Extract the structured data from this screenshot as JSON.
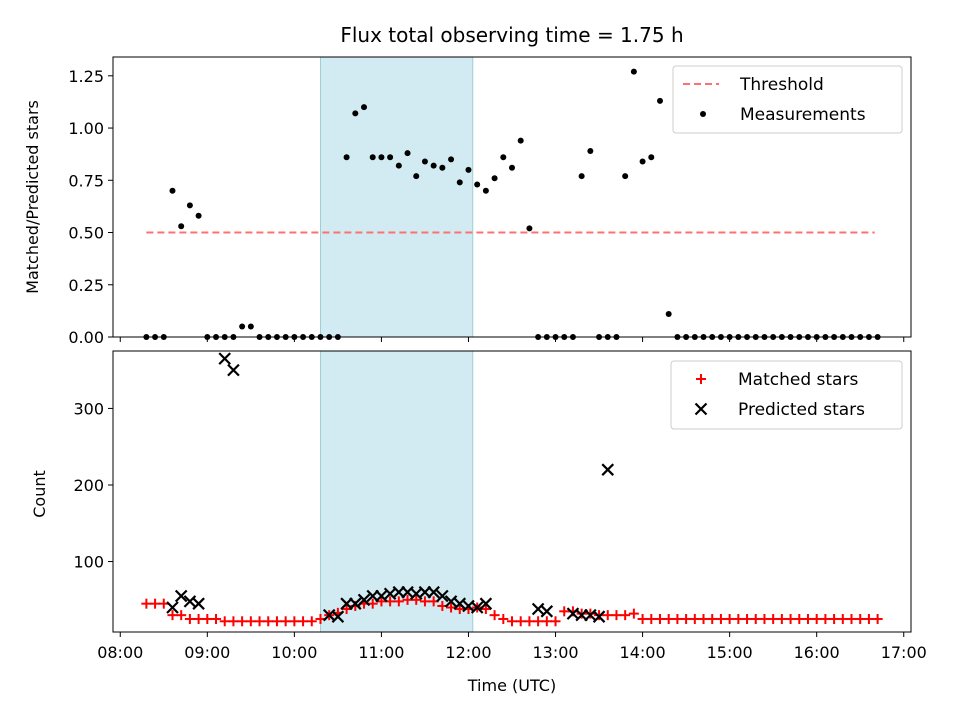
{
  "figure": {
    "title": "Flux total observing time = 1.75 h"
  },
  "chart_data": [
    {
      "type": "scatter",
      "panel": "top",
      "title": "Flux total observing time = 1.75 h",
      "xlabel": "",
      "ylabel": "Matched/Predicted stars",
      "xlim": [
        "07:55",
        "17:05"
      ],
      "ylim": [
        0,
        1.34
      ],
      "yticks": [
        0.0,
        0.25,
        0.5,
        0.75,
        1.0,
        1.25
      ],
      "ytick_labels": [
        "0.00",
        "0.25",
        "0.50",
        "0.75",
        "1.00",
        "1.25"
      ],
      "highlight_span": {
        "start": "10:18",
        "end": "12:03",
        "color": "#add8e6"
      },
      "legend": {
        "placement": "top-right",
        "entries": [
          "Threshold",
          "Measurements"
        ]
      },
      "series": [
        {
          "name": "Threshold",
          "kind": "line",
          "style": "dashed",
          "color": "#ff7070",
          "x": [
            "08:18",
            "16:40"
          ],
          "y": [
            0.5,
            0.5
          ]
        },
        {
          "name": "Measurements",
          "kind": "scatter",
          "color": "#000000",
          "x": [
            "08:18",
            "08:24",
            "08:30",
            "08:36",
            "08:42",
            "08:48",
            "08:54",
            "09:00",
            "09:06",
            "09:12",
            "09:18",
            "09:24",
            "09:30",
            "09:36",
            "09:42",
            "09:48",
            "09:54",
            "10:00",
            "10:06",
            "10:12",
            "10:18",
            "10:24",
            "10:30",
            "10:36",
            "10:42",
            "10:48",
            "10:54",
            "11:00",
            "11:06",
            "11:12",
            "11:18",
            "11:24",
            "11:30",
            "11:36",
            "11:42",
            "11:48",
            "11:54",
            "12:00",
            "12:06",
            "12:12",
            "12:18",
            "12:24",
            "12:30",
            "12:36",
            "12:42",
            "12:48",
            "12:54",
            "13:00",
            "13:06",
            "13:12",
            "13:18",
            "13:24",
            "13:30",
            "13:36",
            "13:42",
            "13:48",
            "13:54",
            "14:00",
            "14:06",
            "14:12",
            "14:18",
            "14:24",
            "14:30",
            "14:36",
            "14:42",
            "14:48",
            "14:54",
            "15:00",
            "15:06",
            "15:12",
            "15:18",
            "15:24",
            "15:30",
            "15:36",
            "15:42",
            "15:48",
            "15:54",
            "16:00",
            "16:06",
            "16:12",
            "16:18",
            "16:24",
            "16:30",
            "16:36",
            "16:42"
          ],
          "y": [
            0.0,
            0.0,
            0.0,
            0.7,
            0.53,
            0.63,
            0.58,
            0.0,
            0.0,
            0.0,
            0.0,
            0.05,
            0.05,
            0.0,
            0.0,
            0.0,
            0.0,
            0.0,
            0.0,
            0.0,
            0.0,
            0.0,
            0.0,
            0.86,
            1.07,
            1.1,
            0.86,
            0.86,
            0.86,
            0.82,
            0.88,
            0.77,
            0.84,
            0.82,
            0.81,
            0.85,
            0.74,
            0.8,
            0.73,
            0.7,
            0.76,
            0.86,
            0.81,
            0.94,
            0.52,
            0.0,
            0.0,
            0.0,
            0.0,
            0.0,
            0.77,
            0.89,
            0.0,
            0.0,
            0.0,
            0.77,
            1.27,
            0.84,
            0.86,
            1.13,
            0.11,
            0.0,
            0.0,
            0.0,
            0.0,
            0.0,
            0.0,
            0.0,
            0.0,
            0.0,
            0.0,
            0.0,
            0.0,
            0.0,
            0.0,
            0.0,
            0.0,
            0.0,
            0.0,
            0.0,
            0.0,
            0.0,
            0.0,
            0.0,
            0.0
          ]
        }
      ]
    },
    {
      "type": "scatter",
      "panel": "bottom",
      "xlabel": "Time (UTC)",
      "ylabel": "Count",
      "xlim": [
        "07:55",
        "17:05"
      ],
      "ylim": [
        8,
        375
      ],
      "xticks": [
        "08:00",
        "09:00",
        "10:00",
        "11:00",
        "12:00",
        "13:00",
        "14:00",
        "15:00",
        "16:00",
        "17:00"
      ],
      "yticks": [
        100,
        200,
        300
      ],
      "ytick_labels": [
        "100",
        "200",
        "300"
      ],
      "highlight_span": {
        "start": "10:18",
        "end": "12:03",
        "color": "#add8e6"
      },
      "legend": {
        "placement": "top-right",
        "entries": [
          "Matched stars",
          "Predicted stars"
        ]
      },
      "series": [
        {
          "name": "Matched stars",
          "marker": "+",
          "color": "#ff0000",
          "x": [
            "08:18",
            "08:24",
            "08:30",
            "08:36",
            "08:42",
            "08:48",
            "08:54",
            "09:00",
            "09:06",
            "09:12",
            "09:18",
            "09:24",
            "09:30",
            "09:36",
            "09:42",
            "09:48",
            "09:54",
            "10:00",
            "10:06",
            "10:12",
            "10:18",
            "10:24",
            "10:30",
            "10:36",
            "10:42",
            "10:48",
            "10:54",
            "11:00",
            "11:06",
            "11:12",
            "11:18",
            "11:24",
            "11:30",
            "11:36",
            "11:42",
            "11:48",
            "11:54",
            "12:00",
            "12:06",
            "12:12",
            "12:18",
            "12:24",
            "12:30",
            "12:36",
            "12:42",
            "12:48",
            "12:54",
            "13:00",
            "13:06",
            "13:12",
            "13:18",
            "13:24",
            "13:30",
            "13:36",
            "13:42",
            "13:48",
            "13:54",
            "14:00",
            "14:06",
            "14:12",
            "14:18",
            "14:24",
            "14:30",
            "14:36",
            "14:42",
            "14:48",
            "14:54",
            "15:00",
            "15:06",
            "15:12",
            "15:18",
            "15:24",
            "15:30",
            "15:36",
            "15:42",
            "15:48",
            "15:54",
            "16:00",
            "16:06",
            "16:12",
            "16:18",
            "16:24",
            "16:30",
            "16:36",
            "16:42"
          ],
          "y": [
            45,
            45,
            45,
            30,
            30,
            25,
            25,
            25,
            25,
            22,
            22,
            22,
            22,
            22,
            22,
            22,
            22,
            22,
            22,
            22,
            25,
            30,
            33,
            38,
            42,
            45,
            45,
            48,
            48,
            48,
            50,
            50,
            48,
            48,
            42,
            40,
            38,
            38,
            40,
            38,
            30,
            25,
            22,
            22,
            22,
            22,
            22,
            22,
            35,
            35,
            32,
            32,
            30,
            30,
            30,
            30,
            32,
            25,
            25,
            25,
            25,
            25,
            25,
            25,
            25,
            25,
            25,
            25,
            25,
            25,
            25,
            25,
            25,
            25,
            25,
            25,
            25,
            25,
            25,
            25,
            25,
            25,
            25,
            25,
            25
          ]
        },
        {
          "name": "Predicted stars",
          "marker": "x",
          "color": "#000000",
          "x": [
            "08:36",
            "08:42",
            "08:48",
            "08:54",
            "09:12",
            "09:18",
            "10:24",
            "10:30",
            "10:36",
            "10:42",
            "10:48",
            "10:54",
            "11:00",
            "11:06",
            "11:12",
            "11:18",
            "11:24",
            "11:30",
            "11:36",
            "11:42",
            "11:48",
            "11:54",
            "12:00",
            "12:06",
            "12:12",
            "12:48",
            "12:54",
            "13:12",
            "13:18",
            "13:24",
            "13:30",
            "13:36"
          ],
          "y": [
            40,
            55,
            48,
            45,
            365,
            350,
            30,
            28,
            45,
            45,
            50,
            55,
            55,
            58,
            60,
            60,
            58,
            60,
            60,
            55,
            48,
            45,
            42,
            40,
            45,
            38,
            35,
            32,
            30,
            30,
            28,
            220
          ]
        }
      ]
    }
  ]
}
